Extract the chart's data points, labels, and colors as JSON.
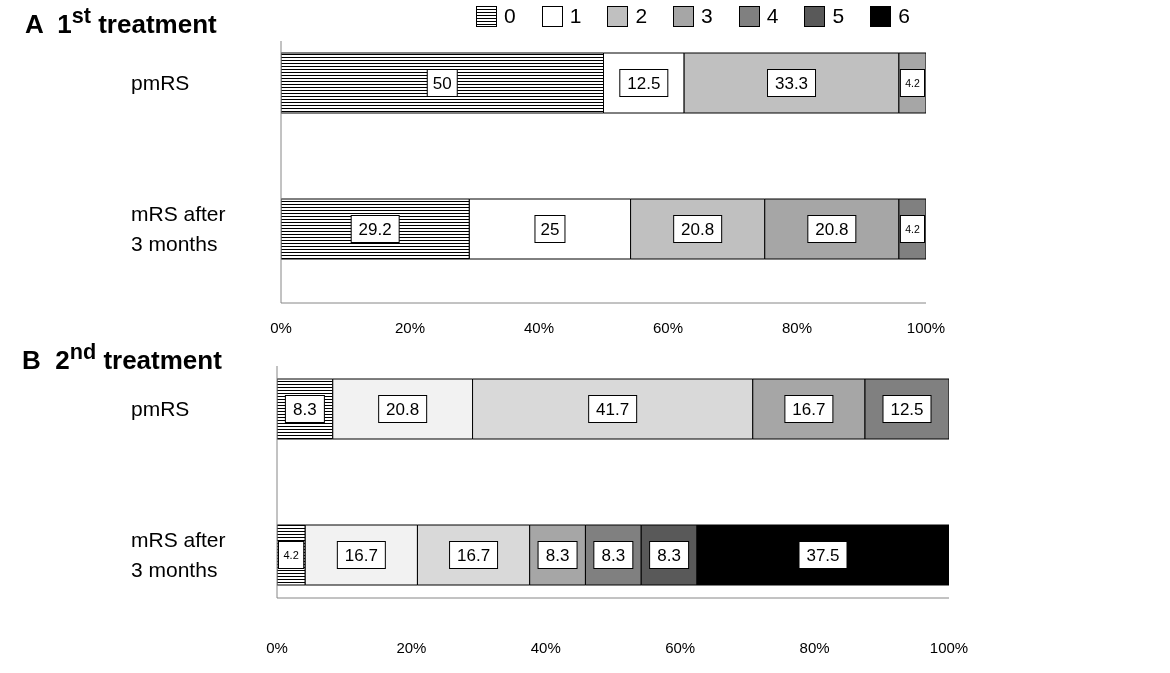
{
  "chart_data": [
    {
      "type": "bar",
      "orientation": "horizontal",
      "stacked": true,
      "title": "A  1$^{st}$ treatment",
      "categories": [
        "pmRS",
        "mRS after 3 months"
      ],
      "series": [
        {
          "name": "0",
          "color": "#000000",
          "values": [
            50,
            29.2
          ]
        },
        {
          "name": "1",
          "color": "#ffffff",
          "values": [
            12.5,
            25
          ]
        },
        {
          "name": "2",
          "color": "#c0c0c0",
          "values": [
            33.3,
            20.8
          ]
        },
        {
          "name": "3",
          "color": "#a6a6a6",
          "values": [
            4.2,
            20.8
          ]
        },
        {
          "name": "4",
          "color": "#808080",
          "values": [
            null,
            4.2
          ]
        },
        {
          "name": "5",
          "color": "#595959",
          "values": [
            null,
            null
          ]
        },
        {
          "name": "6",
          "color": "#000000",
          "values": [
            null,
            null
          ]
        }
      ],
      "xlim": [
        0,
        100
      ],
      "xticks": [
        {
          "value": 0,
          "label": "0%"
        },
        {
          "value": 20,
          "label": "20%"
        },
        {
          "value": 40,
          "label": "40%"
        },
        {
          "value": 60,
          "label": "60%"
        },
        {
          "value": 80,
          "label": "80%"
        },
        {
          "value": 100,
          "label": "100%"
        }
      ],
      "data_labels": true,
      "legend": "top"
    },
    {
      "type": "bar",
      "orientation": "horizontal",
      "stacked": true,
      "title": "B  2$^{nd}$ treatment",
      "categories": [
        "pmRS",
        "mRS after 3 months"
      ],
      "series": [
        {
          "color": "#000000",
          "values": [
            8.3,
            4.2
          ]
        },
        {
          "color": "#f2f2f2",
          "values": [
            20.8,
            16.7
          ]
        },
        {
          "color": "#d9d9d9",
          "values": [
            41.7,
            16.7
          ]
        },
        {
          "color": "#a6a6a6",
          "values": [
            16.7,
            8.3
          ]
        },
        {
          "color": "#808080",
          "values": [
            12.5,
            8.3
          ]
        },
        {
          "color": "#595959",
          "values": [
            null,
            8.3
          ]
        },
        {
          "color": "#000000",
          "values": [
            null,
            37.5
          ]
        }
      ],
      "xlim": [
        0,
        100
      ],
      "xticks": [
        {
          "value": 0,
          "label": "0%"
        },
        {
          "value": 20,
          "label": "20%"
        },
        {
          "value": 40,
          "label": "40%"
        },
        {
          "value": 60,
          "label": "60%"
        },
        {
          "value": 80,
          "label": "80%"
        },
        {
          "value": 100,
          "label": "100%"
        }
      ],
      "data_labels": true
    }
  ]
}
